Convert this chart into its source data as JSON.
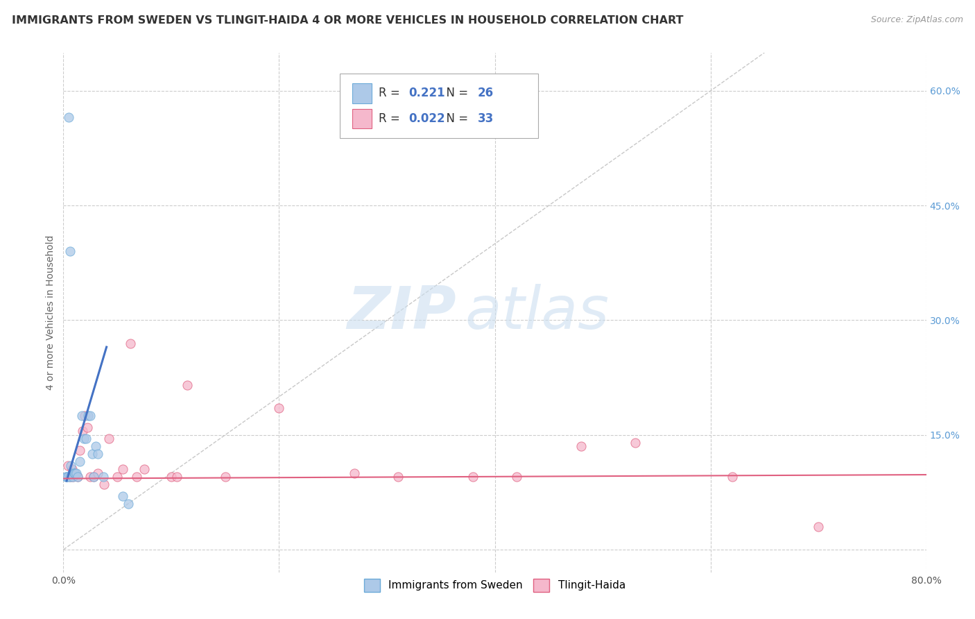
{
  "title": "IMMIGRANTS FROM SWEDEN VS TLINGIT-HAIDA 4 OR MORE VEHICLES IN HOUSEHOLD CORRELATION CHART",
  "source": "Source: ZipAtlas.com",
  "ylabel": "4 or more Vehicles in Household",
  "xlim": [
    0.0,
    0.8
  ],
  "ylim": [
    -0.03,
    0.65
  ],
  "xticks": [
    0.0,
    0.2,
    0.4,
    0.6,
    0.8
  ],
  "xtick_labels_show": [
    "0.0%",
    "",
    "",
    "",
    "80.0%"
  ],
  "yticks": [
    0.0,
    0.15,
    0.3,
    0.45,
    0.6
  ],
  "ytick_right_labels": [
    "",
    "15.0%",
    "30.0%",
    "45.0%",
    "60.0%"
  ],
  "grid_color": "#cccccc",
  "background_color": "#ffffff",
  "watermark_text": "ZIP",
  "watermark_text2": "atlas",
  "series": [
    {
      "name": "Immigrants from Sweden",
      "color": "#adc9e8",
      "edge_color": "#6baad8",
      "R": 0.221,
      "N": 26,
      "x": [
        0.005,
        0.002,
        0.003,
        0.004,
        0.006,
        0.006,
        0.007,
        0.008,
        0.009,
        0.01,
        0.011,
        0.012,
        0.013,
        0.015,
        0.017,
        0.019,
        0.021,
        0.023,
        0.025,
        0.027,
        0.028,
        0.03,
        0.032,
        0.037,
        0.055,
        0.06
      ],
      "y": [
        0.565,
        0.095,
        0.095,
        0.095,
        0.39,
        0.095,
        0.11,
        0.1,
        0.095,
        0.1,
        0.1,
        0.1,
        0.095,
        0.115,
        0.175,
        0.145,
        0.145,
        0.175,
        0.175,
        0.125,
        0.095,
        0.135,
        0.125,
        0.095,
        0.07,
        0.06
      ]
    },
    {
      "name": "Tlingit-Haida",
      "color": "#f5b8cc",
      "edge_color": "#e06080",
      "R": 0.022,
      "N": 33,
      "x": [
        0.004,
        0.006,
        0.008,
        0.009,
        0.011,
        0.013,
        0.015,
        0.018,
        0.02,
        0.022,
        0.025,
        0.028,
        0.032,
        0.038,
        0.042,
        0.05,
        0.055,
        0.062,
        0.068,
        0.075,
        0.1,
        0.105,
        0.115,
        0.15,
        0.2,
        0.27,
        0.31,
        0.38,
        0.42,
        0.48,
        0.53,
        0.62,
        0.7
      ],
      "y": [
        0.11,
        0.095,
        0.105,
        0.095,
        0.1,
        0.095,
        0.13,
        0.155,
        0.175,
        0.16,
        0.095,
        0.095,
        0.1,
        0.085,
        0.145,
        0.095,
        0.105,
        0.27,
        0.095,
        0.105,
        0.095,
        0.095,
        0.215,
        0.095,
        0.185,
        0.1,
        0.095,
        0.095,
        0.095,
        0.135,
        0.14,
        0.095,
        0.03
      ]
    }
  ],
  "trend_line_sweden": {
    "color": "#4472c4",
    "x_start": 0.003,
    "x_end": 0.04,
    "y_start": 0.09,
    "y_end": 0.265
  },
  "trend_line_tlingit": {
    "color": "#e06080",
    "x_start": 0.0,
    "x_end": 0.8,
    "y_start": 0.093,
    "y_end": 0.098
  },
  "diagonal_dashed": {
    "color": "#c8c8c8",
    "x": [
      0.0,
      0.65
    ],
    "y": [
      0.0,
      0.65
    ]
  },
  "r_n_color": "#4472c4",
  "marker_size": 90,
  "title_fontsize": 11.5,
  "axis_label_fontsize": 10,
  "tick_fontsize": 10,
  "legend_fontsize": 11
}
